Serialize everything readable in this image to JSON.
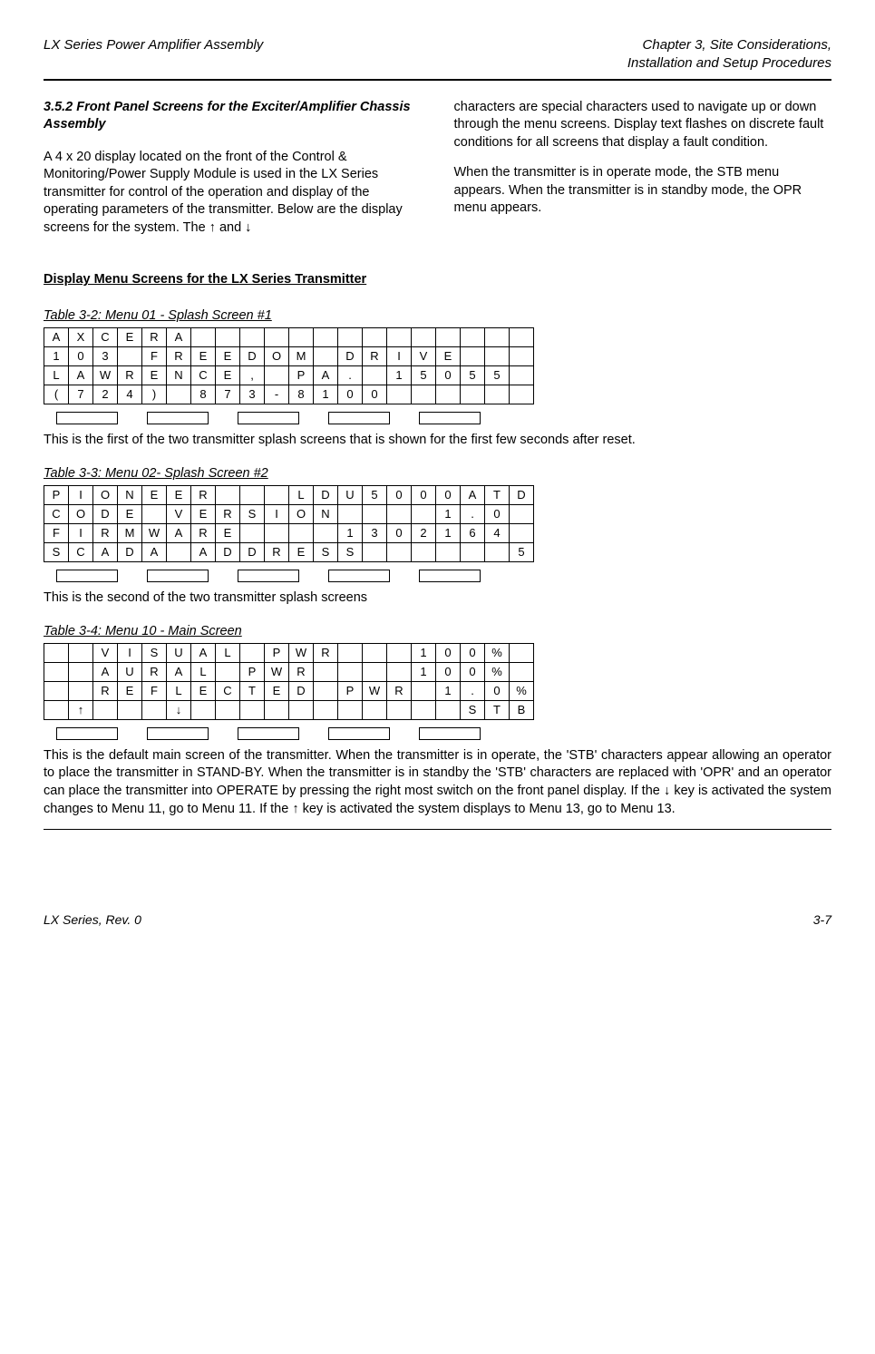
{
  "header": {
    "left": "LX Series Power Amplifier Assembly",
    "right1": "Chapter 3, Site Considerations,",
    "right2": "Installation and Setup Procedures"
  },
  "section": {
    "title": "3.5.2 Front Panel Screens for the Exciter/Amplifier Chassis Assembly",
    "left_para": "A 4 x 20 display located on the front of the Control & Monitoring/Power Supply Module is used in the LX Series transmitter for control of the operation and display of the operating parameters of the transmitter.  Below are the display screens for the system.  The ↑ and ↓",
    "right_para1": "characters are special characters used to navigate up or down through the menu screens. Display text flashes on discrete fault conditions for all screens that display a fault condition.",
    "right_para2": "When the transmitter is in operate mode, the STB menu appears. When the transmitter is in standby mode, the OPR menu appears."
  },
  "dm_heading": "Display Menu Screens for the LX Series Transmitter",
  "tables": [
    {
      "caption": "Table 3-2: Menu 01 - Splash Screen #1",
      "rows": [
        [
          "A",
          "X",
          "C",
          "E",
          "R",
          "A",
          "",
          "",
          "",
          "",
          "",
          "",
          "",
          "",
          "",
          "",
          "",
          "",
          "",
          ""
        ],
        [
          "1",
          "0",
          "3",
          "",
          "F",
          "R",
          "E",
          "E",
          "D",
          "O",
          "M",
          "",
          "D",
          "R",
          "I",
          "V",
          "E",
          "",
          "",
          ""
        ],
        [
          "L",
          "A",
          "W",
          "R",
          "E",
          "N",
          "C",
          "E",
          ",",
          "",
          "P",
          "A",
          ".",
          "",
          "1",
          "5",
          "0",
          "5",
          "5",
          ""
        ],
        [
          "(",
          "7",
          "2",
          "4",
          ")",
          "",
          "8",
          "7",
          "3",
          "-",
          "8",
          "1",
          "0",
          "0",
          "",
          "",
          "",
          "",
          "",
          ""
        ]
      ],
      "desc": "This is the first of the two transmitter splash screens that is shown for the first few seconds after reset.",
      "justify": false
    },
    {
      "caption": "Table 3-3: Menu 02- Splash Screen #2",
      "rows": [
        [
          "P",
          "I",
          "O",
          "N",
          "E",
          "E",
          "R",
          "",
          "",
          "",
          "L",
          "D",
          "U",
          "5",
          "0",
          "0",
          "0",
          "A",
          "T",
          "D"
        ],
        [
          "C",
          "O",
          "D",
          "E",
          "",
          "V",
          "E",
          "R",
          "S",
          "I",
          "O",
          "N",
          "",
          "",
          "",
          "",
          "1",
          ".",
          "0",
          ""
        ],
        [
          "F",
          "I",
          "R",
          "M",
          "W",
          "A",
          "R",
          "E",
          "",
          "",
          "",
          "",
          "1",
          "3",
          "0",
          "2",
          "1",
          "6",
          "4",
          ""
        ],
        [
          "S",
          "C",
          "A",
          "D",
          "A",
          "",
          "A",
          "D",
          "D",
          "R",
          "E",
          "S",
          "S",
          "",
          "",
          "",
          "",
          "",
          "",
          "5"
        ]
      ],
      "desc": "This is the second of the two transmitter splash screens",
      "justify": false
    },
    {
      "caption": "Table 3-4: Menu 10 - Main Screen",
      "rows": [
        [
          "",
          "",
          "V",
          "I",
          "S",
          "U",
          "A",
          "L",
          "",
          "P",
          "W",
          "R",
          "",
          "",
          "",
          "1",
          "0",
          "0",
          "%",
          ""
        ],
        [
          "",
          "",
          "A",
          "U",
          "R",
          "A",
          "L",
          "",
          "P",
          "W",
          "R",
          "",
          "",
          "",
          "",
          "1",
          "0",
          "0",
          "%",
          ""
        ],
        [
          "",
          "",
          "R",
          "E",
          "F",
          "L",
          "E",
          "C",
          "T",
          "E",
          "D",
          "",
          "P",
          "W",
          "R",
          "",
          "1",
          ".",
          "0",
          "%"
        ],
        [
          "",
          "↑",
          "",
          "",
          "",
          "↓",
          "",
          "",
          "",
          "",
          "",
          "",
          "",
          "",
          "",
          "",
          "",
          "S",
          "T",
          "B"
        ]
      ],
      "desc": "This is the default main screen of the transmitter.  When the transmitter is in operate, the 'STB' characters appear allowing an operator to place the transmitter in STAND-BY.  When the transmitter is in standby the 'STB' characters are replaced with 'OPR' and an operator can place the transmitter into OPERATE by pressing the right most switch on the front panel display.  If the ↓ key is activated the system changes to Menu 11, go to Menu 11.  If the ↑ key is activated the system displays to Menu 13, go to Menu 13.",
      "justify": true
    }
  ],
  "footer": {
    "left": "LX Series, Rev. 0",
    "right": "3-7"
  }
}
